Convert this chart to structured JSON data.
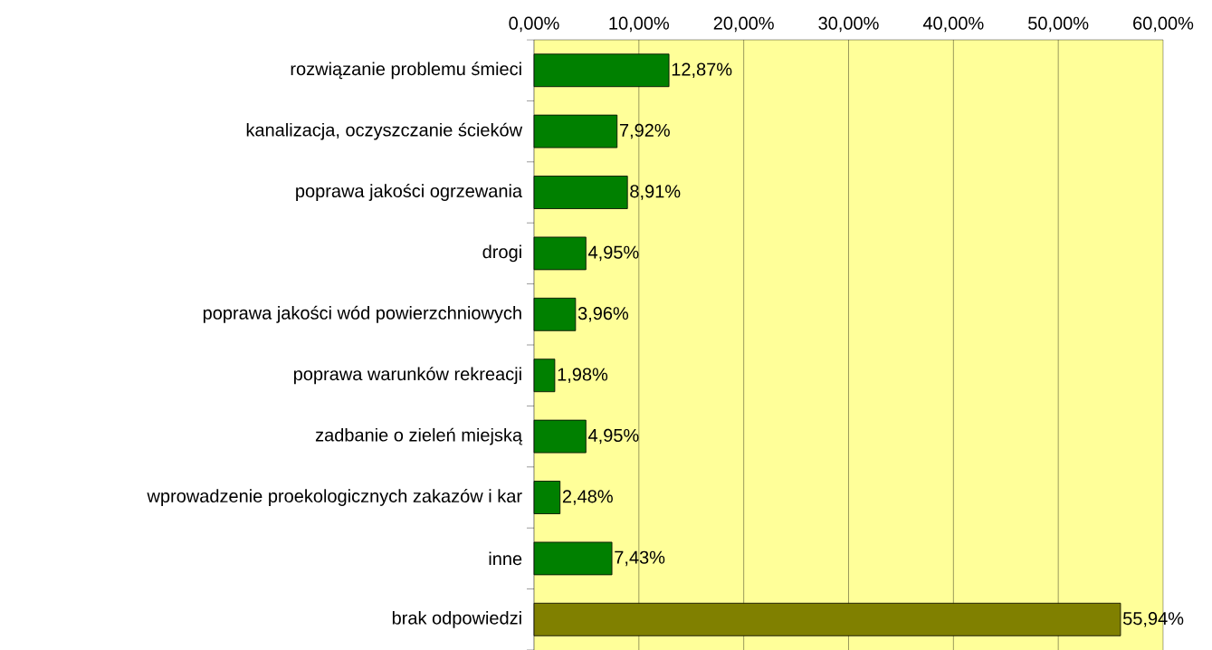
{
  "chart_data": {
    "type": "bar",
    "orientation": "horizontal",
    "categories": [
      "rozwiązanie problemu śmieci",
      "kanalizacja, oczyszczanie ścieków",
      "poprawa jakości ogrzewania",
      "drogi",
      "poprawa jakości wód powierzchniowych",
      "poprawa warunków rekreacji",
      "zadbanie o zieleń miejską",
      "wprowadzenie proekologicznych zakazów i kar",
      "inne",
      "brak odpowiedzi"
    ],
    "values": [
      12.87,
      7.92,
      8.91,
      4.95,
      3.96,
      1.98,
      4.95,
      2.48,
      7.43,
      55.94
    ],
    "value_labels": [
      "12,87%",
      "7,92%",
      "8,91%",
      "4,95%",
      "3,96%",
      "1,98%",
      "4,95%",
      "2,48%",
      "7,43%",
      "55,94%"
    ],
    "colors": [
      "#008000",
      "#008000",
      "#008000",
      "#008000",
      "#008000",
      "#008000",
      "#008000",
      "#008000",
      "#008000",
      "#808000"
    ],
    "xlim": [
      0,
      60
    ],
    "xticks": [
      {
        "value": 0,
        "label": "0,00%"
      },
      {
        "value": 10,
        "label": "10,00%"
      },
      {
        "value": 20,
        "label": "20,00%"
      },
      {
        "value": 30,
        "label": "30,00%"
      },
      {
        "value": 40,
        "label": "40,00%"
      },
      {
        "value": 50,
        "label": "50,00%"
      },
      {
        "value": 60,
        "label": "60,00%"
      }
    ],
    "grid": "x"
  }
}
